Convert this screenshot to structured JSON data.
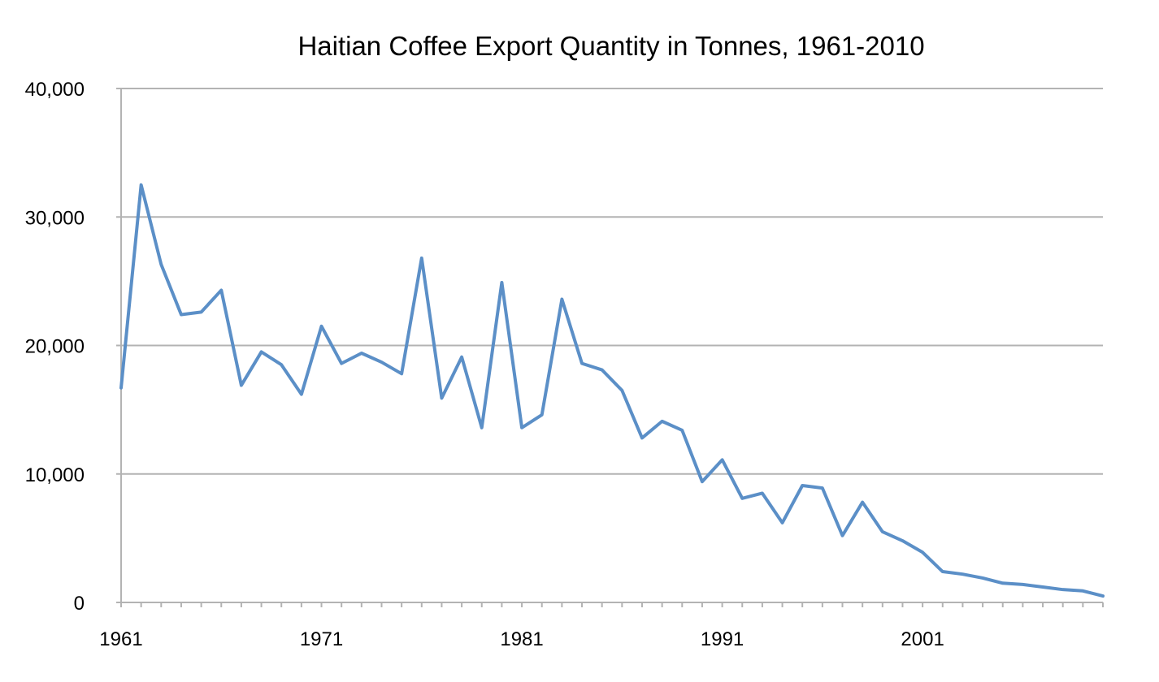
{
  "chart_data": {
    "type": "line",
    "title": "Haitian Coffee Export Quantity in Tonnes, 1961-2010",
    "xlabel": "",
    "ylabel": "",
    "x_start": 1961,
    "x_end": 2010,
    "xlim": [
      1961,
      2010
    ],
    "ylim": [
      0,
      40000
    ],
    "grid": true,
    "legend": "none",
    "line_color": "#5b8fc7",
    "grid_color": "#b3b3b3",
    "x_tick_labels": [
      "1961",
      "1971",
      "1981",
      "1991",
      "2001"
    ],
    "x_tick_values": [
      1961,
      1971,
      1981,
      1991,
      2001
    ],
    "y_tick_labels": [
      "0",
      "10,000",
      "20,000",
      "30,000",
      "40,000"
    ],
    "y_tick_values": [
      0,
      10000,
      20000,
      30000,
      40000
    ],
    "series": [
      {
        "values": [
          16700,
          32500,
          26300,
          22400,
          22600,
          24300,
          16900,
          19500,
          18500,
          16200,
          21500,
          18600,
          19400,
          18700,
          17800,
          26800,
          15900,
          19100,
          13600,
          24900,
          13600,
          14600,
          23600,
          18600,
          18100,
          16500,
          12800,
          14100,
          13400,
          9400,
          11100,
          8100,
          8500,
          6200,
          9100,
          8900,
          5200,
          7800,
          5500,
          4800,
          3900,
          2400,
          2200,
          1900,
          1500,
          1400,
          1200,
          1000,
          900,
          500
        ]
      }
    ]
  }
}
